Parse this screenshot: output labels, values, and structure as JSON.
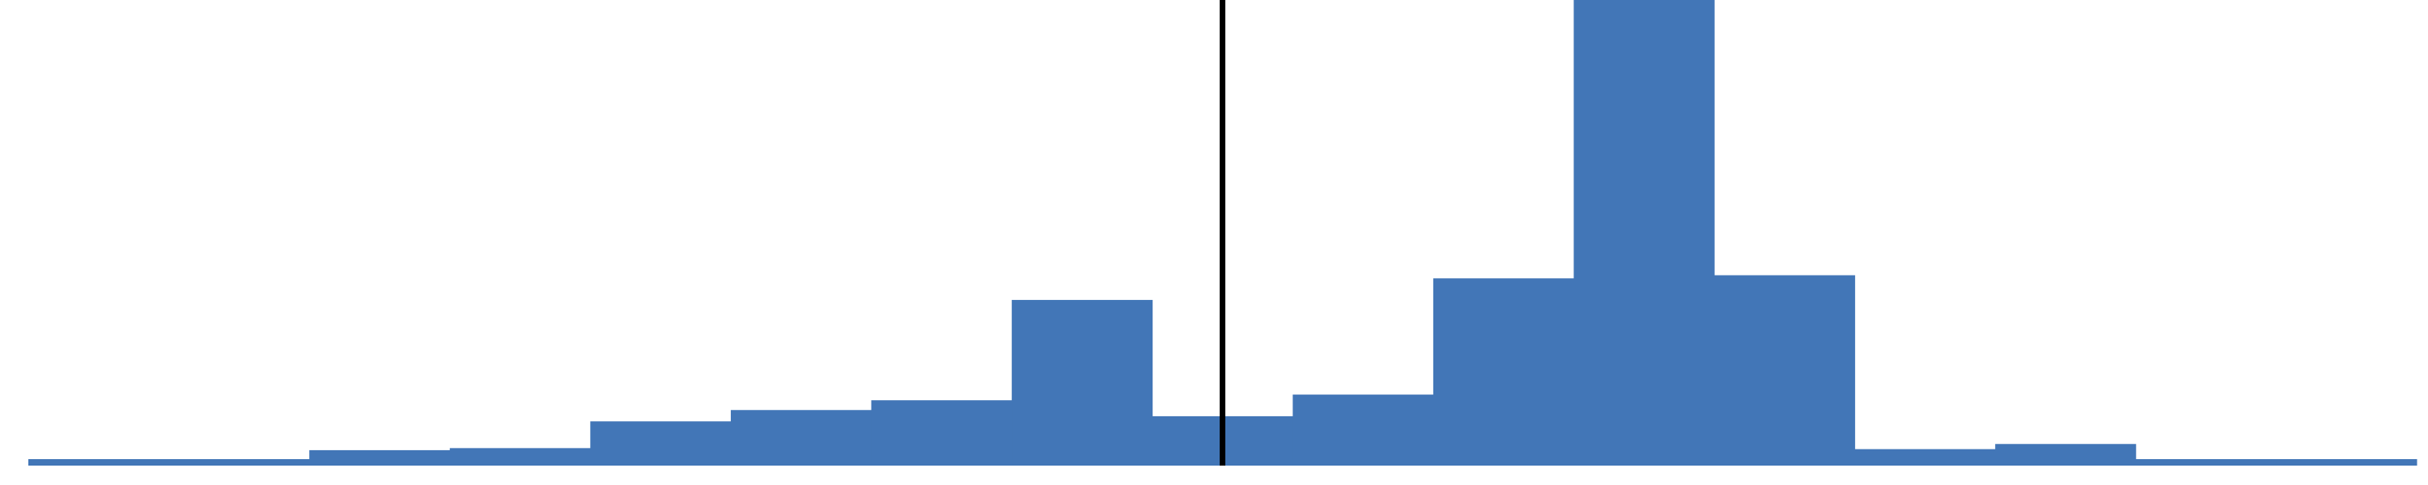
{
  "chart_data": {
    "type": "bar",
    "values": [
      0.08,
      0.1,
      0.3,
      0.34,
      0.86,
      1.08,
      1.27,
      3.22,
      0.96,
      1.38,
      3.64,
      9.05,
      3.7,
      0.32,
      0.42,
      0.1,
      0.08
    ],
    "reference_line": {
      "x": 8.5
    },
    "xlim": [
      0,
      17
    ],
    "ylim": [
      0,
      9.05
    ],
    "colors": {
      "bar": "#4276b7",
      "reference_line": "#000000",
      "background": "#ffffff"
    },
    "grid": false,
    "axes_visible": false
  }
}
